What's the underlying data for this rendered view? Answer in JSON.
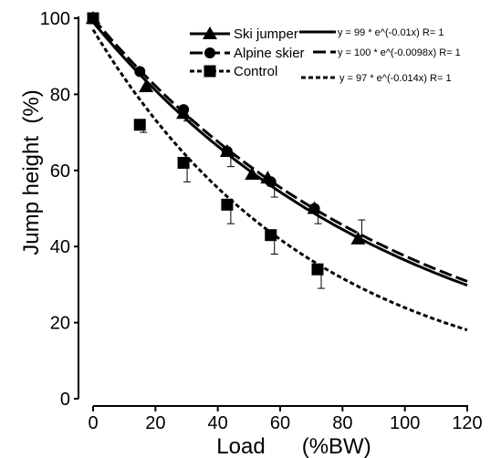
{
  "chart_data": {
    "type": "line",
    "title": "",
    "xlabel": "Load      (%BW)",
    "ylabel": "Jump height  (%)",
    "xlim": [
      0,
      120
    ],
    "ylim": [
      0,
      100
    ],
    "x_ticks": [
      0,
      20,
      40,
      60,
      80,
      100,
      120
    ],
    "y_ticks": [
      0,
      20,
      40,
      60,
      80,
      100
    ],
    "y_tick_labels": [
      "0",
      "20",
      "40",
      "60",
      "80",
      "100"
    ],
    "x_tick_labels": [
      "0",
      "20",
      "40",
      "60",
      "80",
      "100",
      "120"
    ],
    "grid": false,
    "legend_position": "top-right",
    "series": [
      {
        "name": "Ski jumper",
        "marker": "triangle",
        "x": [
          0,
          17,
          29,
          43,
          51,
          56,
          71,
          85
        ],
        "y": [
          100,
          82,
          75,
          65,
          59,
          58,
          50,
          42
        ],
        "err": [
          0,
          0,
          0,
          0,
          0,
          0,
          0,
          5
        ],
        "fit": {
          "a": 99,
          "b": -0.01,
          "style": "solid",
          "label": "y = 99 * e^(-0.01x)   R= 1"
        }
      },
      {
        "name": "Alpine skier",
        "marker": "circle",
        "x": [
          0,
          15,
          29,
          43,
          57,
          71
        ],
        "y": [
          100,
          86,
          76,
          65,
          57,
          50
        ],
        "err": [
          0,
          0,
          3,
          4,
          4,
          4
        ],
        "fit": {
          "a": 100,
          "b": -0.0098,
          "style": "dashed",
          "label": "y = 100 * e^(-0.0098x)   R= 1"
        }
      },
      {
        "name": "Control",
        "marker": "square",
        "x": [
          0,
          15,
          29,
          43,
          57,
          72
        ],
        "y": [
          100,
          72,
          62,
          51,
          43,
          34
        ],
        "err": [
          0,
          2,
          5,
          5,
          5,
          5
        ],
        "fit": {
          "a": 97,
          "b": -0.014,
          "style": "dotted",
          "label": "y = 97 * e^(-0.014x)   R= 1"
        }
      }
    ]
  }
}
